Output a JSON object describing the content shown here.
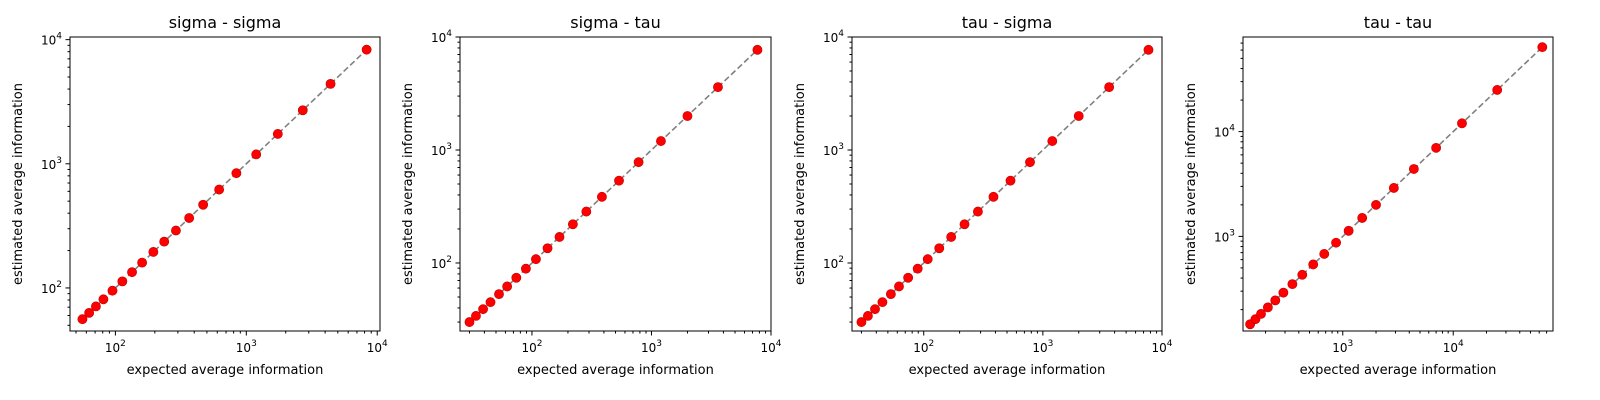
{
  "chart_data": [
    {
      "type": "scatter",
      "title": "sigma - sigma",
      "xlabel": "expected average information",
      "ylabel": "estimated average information",
      "xscale": "log",
      "yscale": "log",
      "xlim": [
        45,
        10500
      ],
      "ylim": [
        45,
        10500
      ],
      "xticks": [
        100,
        1000,
        10000
      ],
      "yticks": [
        100,
        1000,
        10000
      ],
      "reference_line": "y = x (dashed gray)",
      "grid": false,
      "point_color": "#ff0000",
      "x": [
        56,
        63,
        71,
        81,
        95,
        113,
        134,
        160,
        195,
        236,
        290,
        366,
        468,
        620,
        840,
        1190,
        1740,
        2700,
        4400,
        8300
      ],
      "y": [
        56,
        63,
        71,
        81,
        95,
        113,
        134,
        160,
        195,
        236,
        290,
        366,
        468,
        620,
        840,
        1190,
        1740,
        2700,
        4400,
        8300
      ]
    },
    {
      "type": "scatter",
      "title": "sigma - tau",
      "xlabel": "expected average information",
      "ylabel": "estimated average information",
      "xscale": "log",
      "yscale": "log",
      "xlim": [
        25,
        10000
      ],
      "ylim": [
        25,
        10000
      ],
      "xticks": [
        100,
        1000,
        10000
      ],
      "yticks": [
        100,
        1000,
        10000
      ],
      "reference_line": "y = x (dashed gray)",
      "grid": false,
      "point_color": "#ff0000",
      "x": [
        30,
        34,
        39,
        45,
        53,
        62,
        74,
        89,
        108,
        135,
        170,
        220,
        285,
        385,
        535,
        780,
        1200,
        2000,
        3600,
        7700
      ],
      "y": [
        30,
        34,
        39,
        45,
        53,
        62,
        74,
        89,
        108,
        135,
        170,
        220,
        285,
        385,
        535,
        780,
        1200,
        2000,
        3600,
        7700
      ]
    },
    {
      "type": "scatter",
      "title": "tau - sigma",
      "xlabel": "expected average information",
      "ylabel": "estimated average information",
      "xscale": "log",
      "yscale": "log",
      "xlim": [
        25,
        10000
      ],
      "ylim": [
        25,
        10000
      ],
      "xticks": [
        100,
        1000,
        10000
      ],
      "yticks": [
        100,
        1000,
        10000
      ],
      "reference_line": "y = x (dashed gray)",
      "grid": false,
      "point_color": "#ff0000",
      "x": [
        30,
        34,
        39,
        45,
        53,
        62,
        74,
        89,
        108,
        135,
        170,
        220,
        285,
        385,
        535,
        780,
        1200,
        2000,
        3600,
        7700
      ],
      "y": [
        30,
        34,
        39,
        45,
        53,
        62,
        74,
        89,
        108,
        135,
        170,
        220,
        285,
        385,
        535,
        780,
        1200,
        2000,
        3600,
        7700
      ]
    },
    {
      "type": "scatter",
      "title": "tau - tau",
      "xlabel": "expected average information",
      "ylabel": "estimated average information",
      "xscale": "log",
      "yscale": "log",
      "xlim": [
        125,
        80000
      ],
      "ylim": [
        125,
        80000
      ],
      "xticks": [
        1000,
        10000
      ],
      "yticks": [
        1000,
        10000
      ],
      "reference_line": "y = x (dashed gray)",
      "grid": false,
      "point_color": "#ff0000",
      "x": [
        145,
        162,
        182,
        210,
        245,
        290,
        350,
        430,
        540,
        680,
        870,
        1130,
        1500,
        2000,
        2900,
        4400,
        7000,
        12000,
        25000,
        64000
      ],
      "y": [
        145,
        162,
        182,
        210,
        245,
        290,
        350,
        430,
        540,
        680,
        870,
        1130,
        1500,
        2000,
        2900,
        4400,
        7000,
        12000,
        25000,
        64000
      ]
    }
  ]
}
